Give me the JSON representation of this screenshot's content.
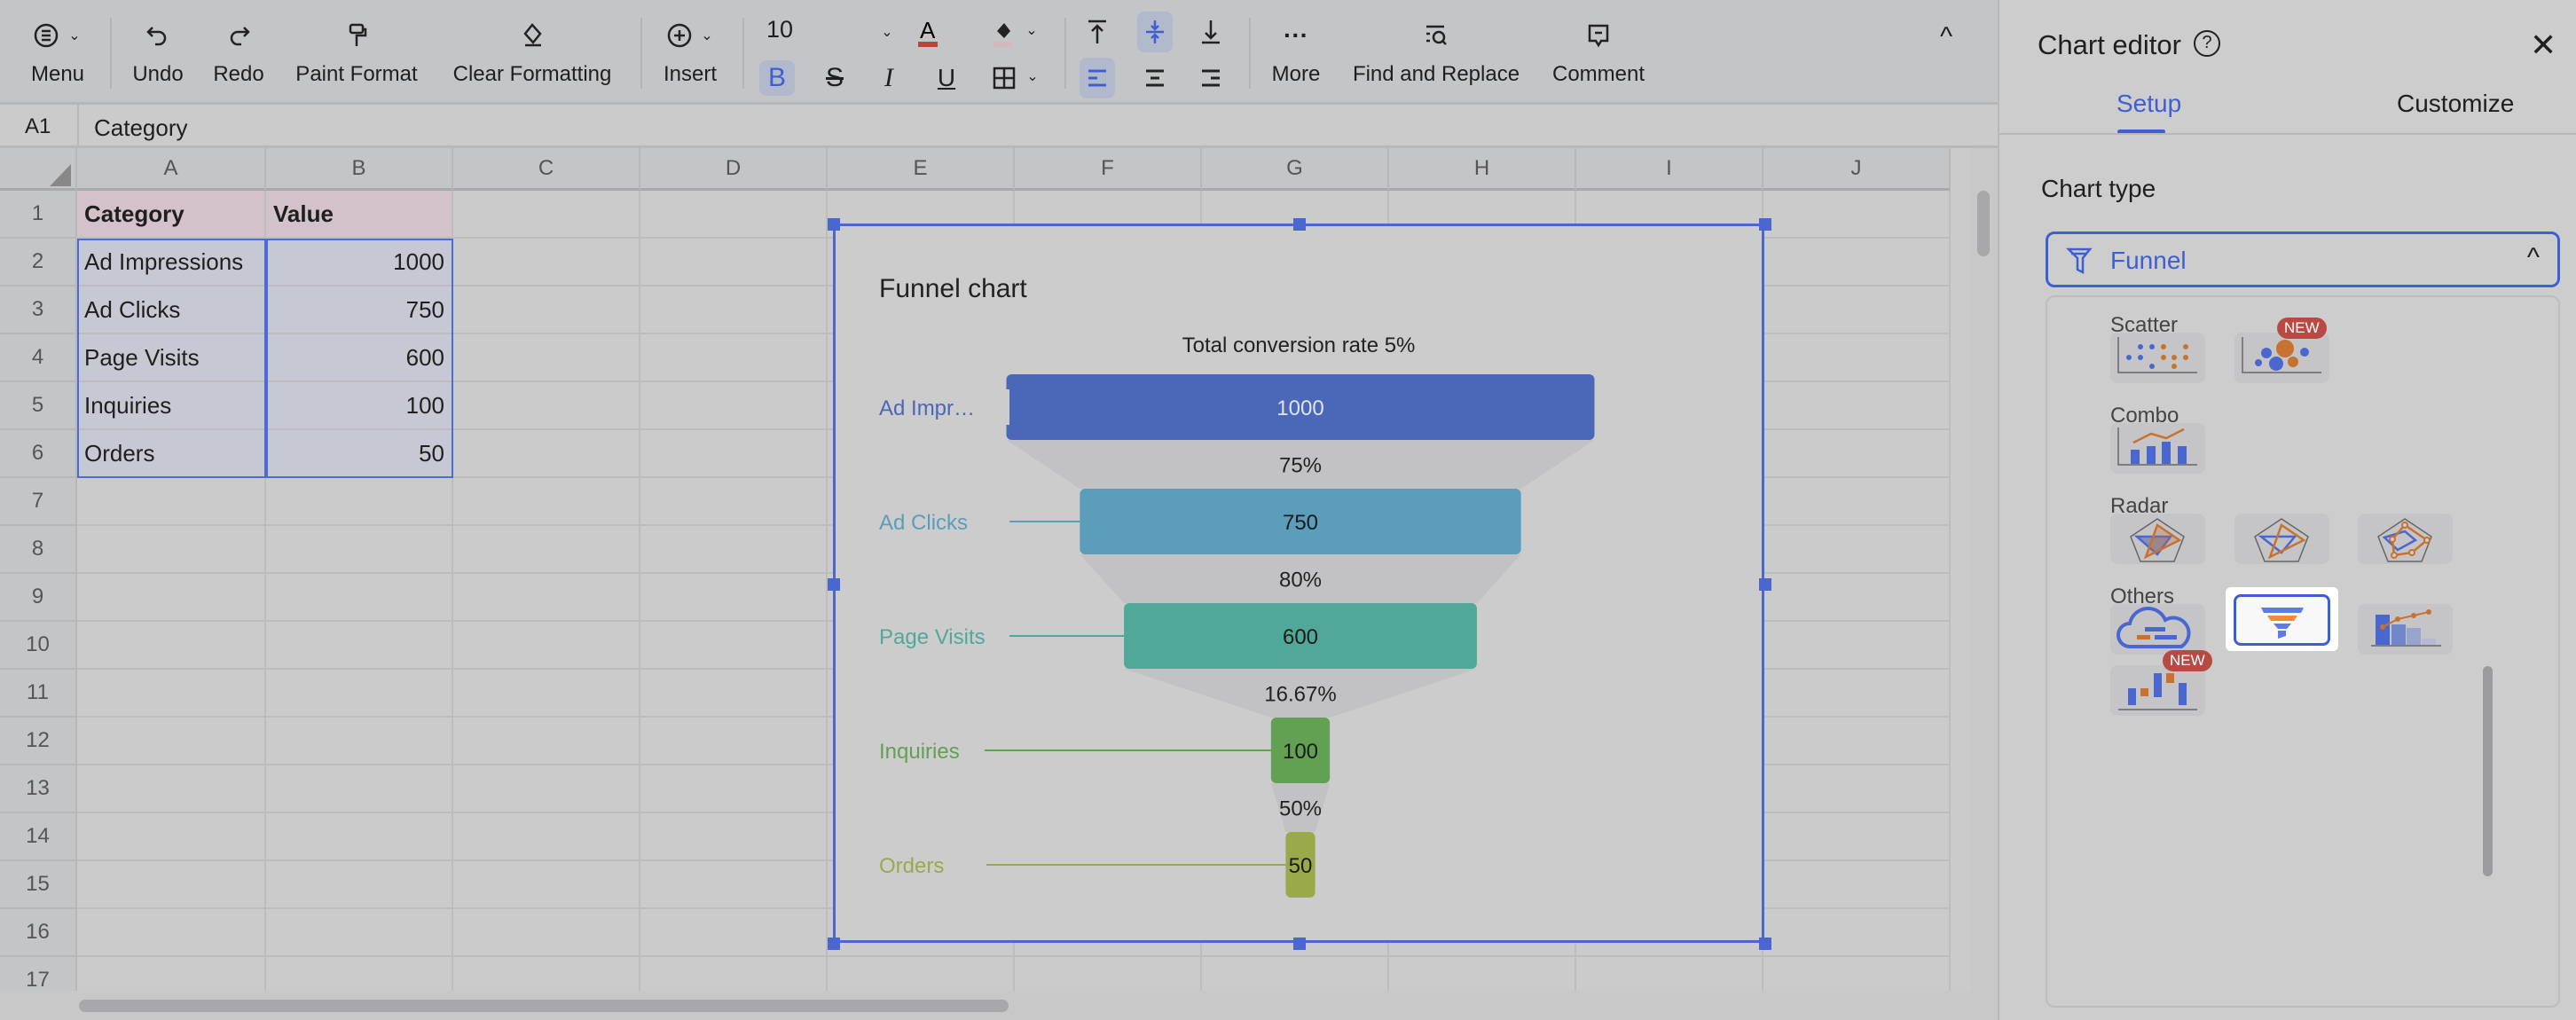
{
  "toolbar": {
    "menu": "Menu",
    "undo": "Undo",
    "redo": "Redo",
    "paint_format": "Paint Format",
    "clear_formatting": "Clear Formatting",
    "insert": "Insert",
    "font_size": "10",
    "more": "More",
    "find_replace": "Find and Replace",
    "comment": "Comment",
    "bold_active": true,
    "align_left_active": true,
    "valign_middle_active": true
  },
  "formula_bar": {
    "cell_ref": "A1",
    "content": "Category"
  },
  "grid": {
    "columns": [
      "A",
      "B",
      "C",
      "D",
      "E",
      "F",
      "G",
      "H",
      "I",
      "J"
    ],
    "rows": [
      "1",
      "2",
      "3",
      "4",
      "5",
      "6",
      "7",
      "8",
      "9",
      "10",
      "11",
      "12",
      "13",
      "14",
      "15",
      "16",
      "17"
    ],
    "cells": [
      [
        "Category",
        "Value"
      ],
      [
        "Ad Impressions",
        "1000"
      ],
      [
        "Ad Clicks",
        "750"
      ],
      [
        "Page Visits",
        "600"
      ],
      [
        "Inquiries",
        "100"
      ],
      [
        "Orders",
        "50"
      ]
    ]
  },
  "chart_data": {
    "type": "funnel",
    "title": "Funnel chart",
    "subtitle": "Total conversion rate 5%",
    "categories": [
      "Ad Impressions",
      "Ad Clicks",
      "Page Visits",
      "Inquiries",
      "Orders"
    ],
    "category_labels": [
      "Ad Impr…",
      "Ad Clicks",
      "Page Visits",
      "Inquiries",
      "Orders"
    ],
    "values": [
      1000,
      750,
      600,
      100,
      50
    ],
    "value_labels": [
      "1000",
      "750",
      "600",
      "100",
      "50"
    ],
    "conversion_labels": [
      "75%",
      "80%",
      "16.67%",
      "50%"
    ],
    "colors": [
      "#4a67b8",
      "#5b9dbb",
      "#50a998",
      "#62a052",
      "#9aaa4a"
    ]
  },
  "panel": {
    "title": "Chart editor",
    "tabs": [
      "Setup",
      "Customize"
    ],
    "active_tab": "Setup",
    "chart_type_label": "Chart type",
    "chart_type_value": "Funnel",
    "sections": {
      "scatter": "Scatter",
      "combo": "Combo",
      "radar": "Radar",
      "others": "Others"
    },
    "new_badge": "NEW",
    "selected": "funnel"
  },
  "colors": {
    "accent": "#3d5fd0",
    "badge": "#b84a44"
  }
}
